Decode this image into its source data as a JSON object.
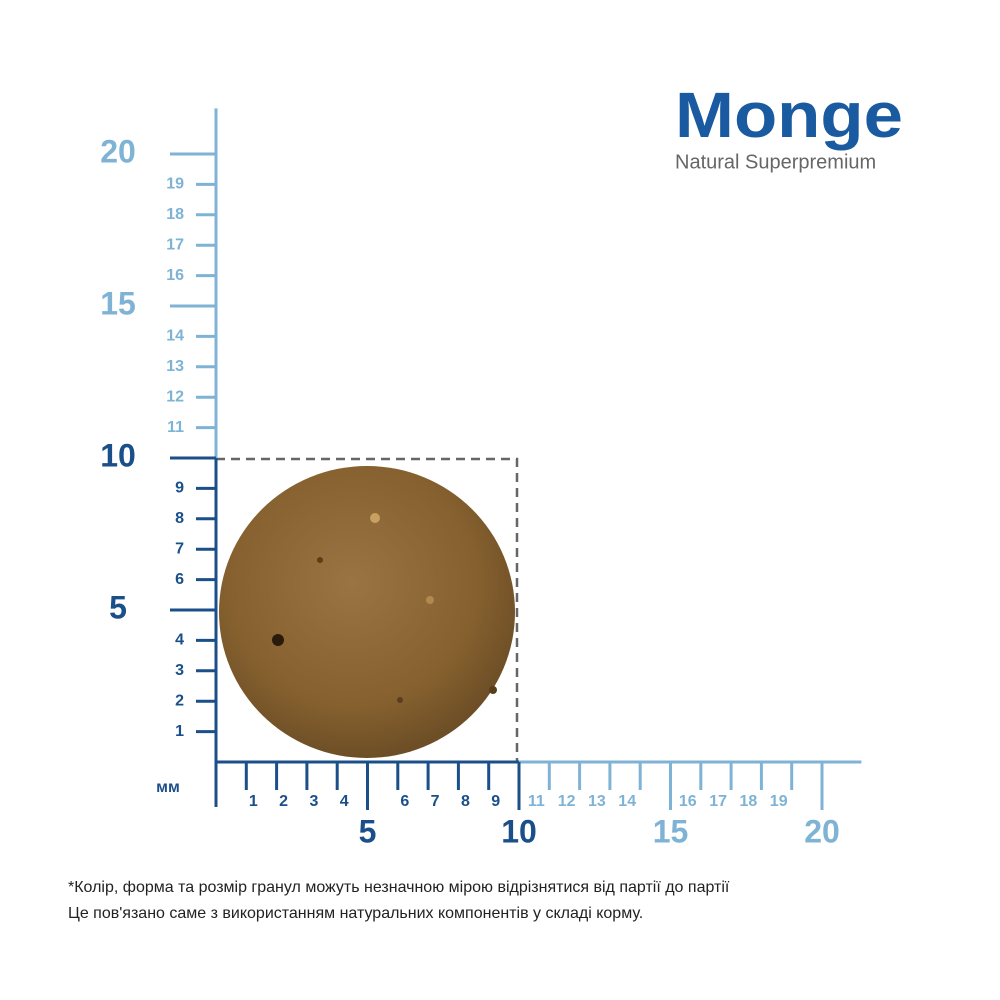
{
  "logo": {
    "brand": "Monge",
    "tagline": "Natural Superpremium"
  },
  "ruler": {
    "unit": "мм",
    "x_labels": [
      1,
      2,
      3,
      4,
      5,
      6,
      7,
      8,
      9,
      10,
      11,
      12,
      13,
      14,
      15,
      16,
      17,
      18,
      19,
      20
    ],
    "y_labels": [
      1,
      2,
      3,
      4,
      5,
      6,
      7,
      8,
      9,
      10,
      11,
      12,
      13,
      14,
      15,
      16,
      17,
      18,
      19,
      20
    ]
  },
  "note": {
    "lines": [
      "*Колір, форма та розмір гранул можуть незначною мірою відрізнятися від партії до партії",
      "Це пов'язано саме з використанням натуральних компонентів у складі корму."
    ]
  }
}
